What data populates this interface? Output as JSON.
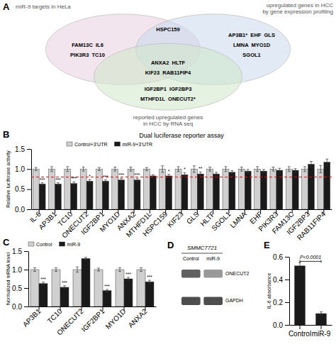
{
  "background_color": "#FFFFFF",
  "chart_data": [
    {
      "type": "venn",
      "label": "A",
      "sets": [
        {
          "name": "miR-9 targets in HeLa",
          "color": "#E8D0DF"
        },
        {
          "name": "upregulated genes in HCC\nby gene expression profiling",
          "color": "#C8D8EC"
        },
        {
          "name": "reported upregulated genes\nin HCC by RNA seq",
          "color": "#D0E8C8"
        }
      ],
      "regions": [
        [
          "FAM13C  IL6",
          "PIK3R3  TC10"
        ],
        [
          "HSPC159"
        ],
        [
          "AP3B1*  EHF  GLS",
          "LMNA  MYO1D",
          "SGOL1"
        ],
        [
          "ANXA2  HLTF",
          "KIF23  RAB11FIP4"
        ],
        [
          "IGF2BP1  IGF2BP3",
          "MTHFD1L  ONECUT2*"
        ]
      ]
    },
    {
      "type": "bar",
      "label": "B",
      "title": "Dual luciferase reporter assay",
      "ylabel": "Relative luciferase activity",
      "categories": [
        "IL-6",
        "AP3B1",
        "TC10",
        "ONECUT2",
        "IGF2BP1",
        "MYO1D",
        "ANXA2",
        "MTHFD1L",
        "HSPC159",
        "KIF23",
        "GLS",
        "HLTF",
        "SGOL1",
        "LMNA",
        "EHF",
        "PIK3R3",
        "FAM13C",
        "IGF2BP3",
        "RAB11FIP4"
      ],
      "series": [
        {
          "name": "Control+3’UTR",
          "color": "#D0D0D0",
          "values": [
            1.0,
            1.0,
            1.0,
            1.0,
            1.0,
            1.0,
            1.0,
            1.0,
            1.0,
            1.0,
            1.0,
            1.0,
            1.0,
            1.0,
            1.0,
            1.0,
            1.0,
            1.0,
            1.0
          ],
          "errors": [
            0.04,
            0.06,
            0.06,
            0.05,
            0.04,
            0.05,
            0.05,
            0.04,
            0.08,
            0.06,
            0.08,
            0.05,
            0.06,
            0.05,
            0.06,
            0.05,
            0.06,
            0.06,
            0.09
          ]
        },
        {
          "name": "miR-9+3’UTR",
          "color": "#1A1A1A",
          "values": [
            0.63,
            0.63,
            0.64,
            0.7,
            0.7,
            0.73,
            0.73,
            0.83,
            0.83,
            0.86,
            0.88,
            0.88,
            0.92,
            0.95,
            0.95,
            0.97,
            0.97,
            1.12,
            1.17
          ],
          "errors": [
            0.03,
            0.03,
            0.04,
            0.04,
            0.03,
            0.04,
            0.04,
            0.03,
            0.04,
            0.05,
            0.05,
            0.04,
            0.04,
            0.04,
            0.04,
            0.05,
            0.04,
            0.07,
            0.08
          ],
          "significance": [
            "***",
            "***",
            "***",
            "*",
            "***",
            "***",
            "***",
            null,
            "*",
            "*",
            "**",
            null,
            null,
            null,
            null,
            null,
            null,
            null,
            null
          ]
        }
      ],
      "reference_line": {
        "value": 0.8,
        "color": "red",
        "line_style": "dashed"
      },
      "ylim": [
        0,
        1.5
      ],
      "yticks": [
        {
          "value": 0,
          "label": "0.0"
        },
        0.5,
        {
          "value": 1,
          "label": "1.0"
        },
        1.5
      ],
      "grid": false,
      "legend": "top-left"
    },
    {
      "type": "bar",
      "label": "C",
      "ylabel": "Normalized mRNA level",
      "categories": [
        "AP3B1",
        "TC10",
        "ONECUT2",
        "IGF2BP1",
        "MYO1D",
        "ANXA2"
      ],
      "series": [
        {
          "name": "Control",
          "color": "#D0D0D0",
          "values": [
            1.0,
            1.0,
            1.0,
            1.0,
            1.0,
            1.0
          ],
          "errors": [
            0.05,
            0.05,
            0.07,
            0.04,
            0.05,
            0.05
          ]
        },
        {
          "name": "miR-9",
          "color": "#1A1A1A",
          "values": [
            0.62,
            0.52,
            1.3,
            0.43,
            0.75,
            0.67
          ],
          "errors": [
            0.04,
            0.04,
            0.03,
            0.03,
            0.04,
            0.04
          ],
          "significance": [
            "***",
            "***",
            null,
            "***",
            "***",
            "***"
          ]
        }
      ],
      "ylim": [
        0,
        1.5
      ],
      "yticks": [
        {
          "value": 0,
          "label": "0.0"
        },
        0.5,
        {
          "value": 1,
          "label": "1.0"
        },
        1.5
      ],
      "grid": false,
      "legend": "top-left"
    },
    {
      "type": "blot",
      "label": "D",
      "title": "SMMC7721",
      "categories": [
        "Control",
        "miR-9"
      ],
      "series": [
        {
          "name": "ONECUT2",
          "values": [
            0.38,
            0.6
          ]
        },
        {
          "name": "GAPDH",
          "values": [
            0.3,
            0.3
          ]
        }
      ]
    },
    {
      "type": "bar",
      "label": "E",
      "ylabel": "IL-6 absorbance",
      "categories": [
        "Control",
        "miR-9"
      ],
      "values": [
        0.52,
        0.1
      ],
      "errors": [
        0.03,
        0.015
      ],
      "color": "#1A1A1A",
      "ylim": [
        0,
        0.6
      ],
      "yticks": [
        {
          "value": 0,
          "label": "0.0"
        },
        0.2,
        0.4,
        0.6
      ],
      "grid": false,
      "annotations": [
        {
          "text": "P<0.0001",
          "y": 0.56
        }
      ]
    }
  ]
}
